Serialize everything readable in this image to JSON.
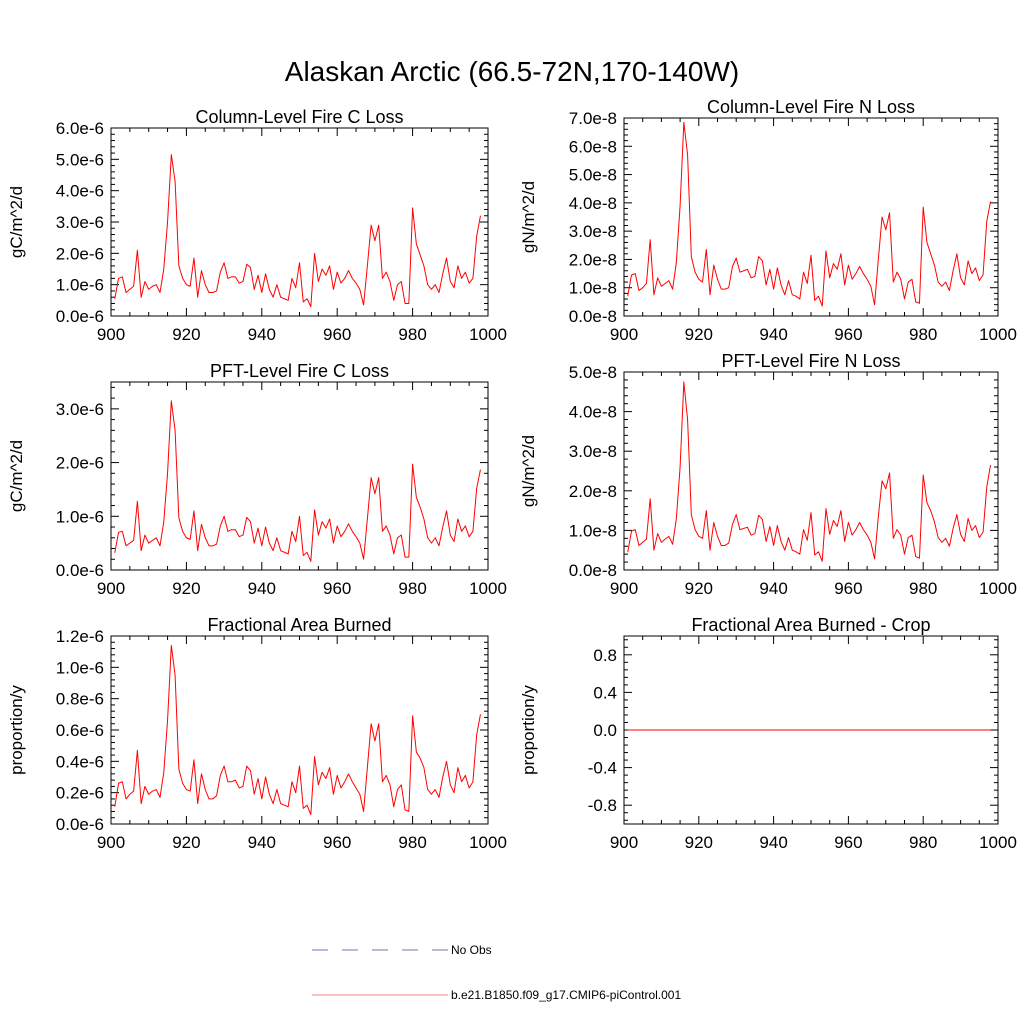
{
  "title": "Alaskan Arctic (66.5-72N,170-140W)",
  "legend": {
    "placement": "bottom-center",
    "entries": [
      {
        "label": "No Obs",
        "color": "#7070b0",
        "style": "dashed"
      },
      {
        "label": "b.e21.B1850.f09_g17.CMIP6-piControl.001",
        "color": "#ff0000",
        "style": "solid"
      }
    ]
  },
  "chart_data": [
    {
      "type": "line",
      "title": "Column-Level Fire C Loss",
      "ylabel": "gC/m^2/d",
      "xlim": [
        900,
        1000
      ],
      "ylim": [
        0,
        6e-06
      ],
      "xticks": [
        900,
        920,
        940,
        960,
        980,
        1000
      ],
      "xtick_labels": [
        "900",
        "920",
        "940",
        "960",
        "980",
        "1000"
      ],
      "yticks": [
        0,
        1e-06,
        2e-06,
        3e-06,
        4e-06,
        5e-06,
        6e-06
      ],
      "ytick_labels": [
        "0.0e-6",
        "1.0e-6",
        "2.0e-6",
        "3.0e-6",
        "4.0e-6",
        "5.0e-6",
        "6.0e-6"
      ],
      "series_color": "#ff0000",
      "x_start": 901,
      "values": [
        5.5e-07,
        1.2e-06,
        1.25e-06,
        7.5e-07,
        8.5e-07,
        9.5e-07,
        2.1e-06,
        6e-07,
        1.1e-06,
        8.5e-07,
        9.5e-07,
        1e-06,
        7.5e-07,
        1.5e-06,
        3e-06,
        5.15e-06,
        4.3e-06,
        1.6e-06,
        1.2e-06,
        1e-06,
        9.5e-07,
        1.85e-06,
        6e-07,
        1.45e-06,
        1e-06,
        7.5e-07,
        7.5e-07,
        8e-07,
        1.4e-06,
        1.7e-06,
        1.2e-06,
        1.25e-06,
        1.25e-06,
        1.05e-06,
        1.1e-06,
        1.65e-06,
        1.55e-06,
        8.5e-07,
        1.3e-06,
        7.5e-07,
        1.35e-06,
        8.5e-07,
        6e-07,
        1e-06,
        6e-07,
        5.5e-07,
        5e-07,
        1.2e-06,
        9e-07,
        1.7e-06,
        4.5e-07,
        5.5e-07,
        3e-07,
        2e-06,
        1.1e-06,
        1.5e-06,
        1.3e-06,
        1.6e-06,
        8.5e-07,
        1.4e-06,
        1.05e-06,
        1.2e-06,
        1.45e-06,
        1.2e-06,
        1.05e-06,
        8.5e-07,
        3.5e-07,
        1.6e-06,
        2.9e-06,
        2.4e-06,
        2.9e-06,
        1.2e-06,
        1.4e-06,
        1.1e-06,
        5e-07,
        1e-06,
        1.1e-06,
        4e-07,
        4e-07,
        3.45e-06,
        2.3e-06,
        1.95e-06,
        1.6e-06,
        1e-06,
        8.5e-07,
        1e-06,
        7.5e-07,
        1.35e-06,
        1.85e-06,
        1.1e-06,
        9e-07,
        1.6e-06,
        1.2e-06,
        1.4e-06,
        1.05e-06,
        1.2e-06,
        2.55e-06,
        3.2e-06
      ]
    },
    {
      "type": "line",
      "title": "Column-Level Fire N Loss",
      "ylabel": "gN/m^2/d",
      "xlim": [
        900,
        1000
      ],
      "ylim": [
        0,
        7e-08
      ],
      "xticks": [
        900,
        920,
        940,
        960,
        980,
        1000
      ],
      "xtick_labels": [
        "900",
        "920",
        "940",
        "960",
        "980",
        "1000"
      ],
      "yticks": [
        0,
        1e-08,
        2e-08,
        3e-08,
        4e-08,
        5e-08,
        6e-08,
        7e-08
      ],
      "ytick_labels": [
        "0.0e-8",
        "1.0e-8",
        "2.0e-8",
        "3.0e-8",
        "4.0e-8",
        "5.0e-8",
        "6.0e-8",
        "7.0e-8"
      ],
      "series_color": "#ff0000",
      "x_start": 901,
      "values": [
        7e-09,
        1.45e-08,
        1.5e-08,
        9e-09,
        1e-08,
        1.15e-08,
        2.7e-08,
        7.5e-09,
        1.35e-08,
        1.05e-08,
        1.15e-08,
        1.25e-08,
        9.5e-09,
        1.9e-08,
        3.9e-08,
        6.85e-08,
        5.7e-08,
        2.1e-08,
        1.55e-08,
        1.3e-08,
        1.2e-08,
        2.35e-08,
        7.5e-09,
        1.8e-08,
        1.3e-08,
        9.5e-09,
        9.5e-09,
        1e-08,
        1.75e-08,
        2.05e-08,
        1.55e-08,
        1.6e-08,
        1.65e-08,
        1.35e-08,
        1.4e-08,
        2.1e-08,
        1.95e-08,
        1.1e-08,
        1.65e-08,
        9.5e-09,
        1.7e-08,
        1.1e-08,
        7.5e-09,
        1.25e-08,
        7.5e-09,
        7e-09,
        6e-09,
        1.55e-08,
        1.15e-08,
        2.15e-08,
        5.5e-09,
        7e-09,
        3.5e-09,
        2.3e-08,
        1.35e-08,
        1.85e-08,
        1.65e-08,
        2.2e-08,
        1.1e-08,
        1.8e-08,
        1.3e-08,
        1.5e-08,
        1.75e-08,
        1.5e-08,
        1.3e-08,
        1.05e-08,
        4e-09,
        2e-08,
        3.5e-08,
        3.05e-08,
        3.65e-08,
        1.2e-08,
        1.55e-08,
        1.3e-08,
        6e-09,
        1.2e-08,
        1.3e-08,
        5e-09,
        4.5e-09,
        3.85e-08,
        2.6e-08,
        2.2e-08,
        1.8e-08,
        1.2e-08,
        1.05e-08,
        1.2e-08,
        9e-09,
        1.6e-08,
        2.2e-08,
        1.35e-08,
        1.1e-08,
        1.95e-08,
        1.5e-08,
        1.7e-08,
        1.25e-08,
        1.45e-08,
        3.35e-08,
        4.05e-08
      ]
    },
    {
      "type": "line",
      "title": "PFT-Level Fire C Loss",
      "ylabel": "gC/m^2/d",
      "xlim": [
        900,
        1000
      ],
      "ylim": [
        0,
        3.5e-06
      ],
      "xticks": [
        900,
        920,
        940,
        960,
        980,
        1000
      ],
      "xtick_labels": [
        "900",
        "920",
        "940",
        "960",
        "980",
        "1000"
      ],
      "yticks": [
        0,
        1e-06,
        2e-06,
        3e-06
      ],
      "ytick_labels": [
        "0.0e-6",
        "1.0e-6",
        "2.0e-6",
        "3.0e-6"
      ],
      "series_color": "#ff0000",
      "x_start": 901,
      "values": [
        3.2e-07,
        7e-07,
        7.2e-07,
        4.5e-07,
        5e-07,
        5.5e-07,
        1.28e-06,
        3.6e-07,
        6.5e-07,
        5e-07,
        5.5e-07,
        6e-07,
        4.5e-07,
        9e-07,
        1.8e-06,
        3.15e-06,
        2.6e-06,
        9.7e-07,
        7.2e-07,
        6e-07,
        5.7e-07,
        1.1e-06,
        3.6e-07,
        8.5e-07,
        6e-07,
        4.5e-07,
        4.5e-07,
        4.8e-07,
        8.2e-07,
        1e-06,
        7.2e-07,
        7.5e-07,
        7.5e-07,
        6.2e-07,
        6.5e-07,
        9.8e-07,
        9e-07,
        5e-07,
        7.8e-07,
        4.5e-07,
        8e-07,
        5e-07,
        3.6e-07,
        6e-07,
        3.6e-07,
        3.3e-07,
        3e-07,
        7.2e-07,
        5.3e-07,
        1e-06,
        2.7e-07,
        3.3e-07,
        1.6e-07,
        1.12e-06,
        6.5e-07,
        9e-07,
        7.8e-07,
        9.5e-07,
        5e-07,
        8.2e-07,
        6.2e-07,
        7.2e-07,
        8.6e-07,
        7.2e-07,
        6.2e-07,
        5e-07,
        2e-07,
        9.5e-07,
        1.72e-06,
        1.42e-06,
        1.72e-06,
        7.2e-07,
        8.2e-07,
        6.5e-07,
        3e-07,
        6e-07,
        6.5e-07,
        2.4e-07,
        2.4e-07,
        1.97e-06,
        1.35e-06,
        1.17e-06,
        9.5e-07,
        6e-07,
        5e-07,
        6e-07,
        4.5e-07,
        8e-07,
        1.1e-06,
        6.5e-07,
        5.3e-07,
        9.5e-07,
        7.2e-07,
        8.2e-07,
        6.2e-07,
        7.2e-07,
        1.52e-06,
        1.87e-06
      ]
    },
    {
      "type": "line",
      "title": "PFT-Level Fire N Loss",
      "ylabel": "gN/m^2/d",
      "xlim": [
        900,
        1000
      ],
      "ylim": [
        0,
        5e-08
      ],
      "xticks": [
        900,
        920,
        940,
        960,
        980,
        1000
      ],
      "xtick_labels": [
        "900",
        "920",
        "940",
        "960",
        "980",
        "1000"
      ],
      "yticks": [
        0,
        1e-08,
        2e-08,
        3e-08,
        4e-08,
        5e-08
      ],
      "ytick_labels": [
        "0.0e-8",
        "1.0e-8",
        "2.0e-8",
        "3.0e-8",
        "4.0e-8",
        "5.0e-8"
      ],
      "series_color": "#ff0000",
      "x_start": 901,
      "values": [
        4.5e-09,
        9.8e-09,
        1.02e-08,
        6.2e-09,
        7e-09,
        7.8e-09,
        1.8e-08,
        5e-09,
        9.2e-09,
        7e-09,
        7.8e-09,
        8.5e-09,
        6.5e-09,
        1.3e-08,
        2.6e-08,
        4.75e-08,
        3.8e-08,
        1.4e-08,
        1.02e-08,
        8.5e-09,
        8e-09,
        1.5e-08,
        5e-09,
        1.2e-08,
        8.5e-09,
        6.2e-09,
        6.2e-09,
        6.8e-09,
        1.15e-08,
        1.4e-08,
        1.02e-08,
        1.05e-08,
        1.08e-08,
        8.8e-09,
        9.2e-09,
        1.38e-08,
        1.28e-08,
        7.2e-09,
        1.1e-08,
        6.2e-09,
        1.12e-08,
        7.2e-09,
        5e-09,
        8.2e-09,
        5e-09,
        4.6e-09,
        4e-09,
        1.02e-08,
        7.5e-09,
        1.45e-08,
        3.8e-09,
        4.6e-09,
        2.2e-09,
        1.55e-08,
        9e-09,
        1.25e-08,
        1.1e-08,
        1.5e-08,
        7.2e-09,
        1.2e-08,
        8.8e-09,
        1.02e-08,
        1.2e-08,
        1.02e-08,
        8.8e-09,
        7e-09,
        2.8e-09,
        1.35e-08,
        2.25e-08,
        2.05e-08,
        2.45e-08,
        8e-09,
        1.02e-08,
        8.8e-09,
        4e-09,
        8.2e-09,
        8.8e-09,
        3.4e-09,
        3e-09,
        2.4e-08,
        1.7e-08,
        1.5e-08,
        1.22e-08,
        8.2e-09,
        7e-09,
        8e-09,
        6e-09,
        1.05e-08,
        1.4e-08,
        9e-09,
        7.2e-09,
        1.3e-08,
        1e-08,
        1.12e-08,
        8.2e-09,
        9.5e-09,
        2.1e-08,
        2.65e-08
      ]
    },
    {
      "type": "line",
      "title": "Fractional Area Burned",
      "ylabel": "proportion/y",
      "xlim": [
        900,
        1000
      ],
      "ylim": [
        0,
        1.2e-06
      ],
      "xticks": [
        900,
        920,
        940,
        960,
        980,
        1000
      ],
      "xtick_labels": [
        "900",
        "920",
        "940",
        "960",
        "980",
        "1000"
      ],
      "yticks": [
        0,
        2e-07,
        4e-07,
        6e-07,
        8e-07,
        1e-06,
        1.2e-06
      ],
      "ytick_labels": [
        "0.0e-6",
        "0.2e-6",
        "0.4e-6",
        "0.6e-6",
        "0.8e-6",
        "1.0e-6",
        "1.2e-6"
      ],
      "series_color": "#ff0000",
      "x_start": 901,
      "values": [
        1.1e-07,
        2.6e-07,
        2.7e-07,
        1.6e-07,
        1.9e-07,
        2.1e-07,
        4.7e-07,
        1.3e-07,
        2.4e-07,
        1.9e-07,
        2.1e-07,
        2.2e-07,
        1.7e-07,
        3.3e-07,
        6.6e-07,
        1.14e-06,
        9.5e-07,
        3.5e-07,
        2.6e-07,
        2.2e-07,
        2.1e-07,
        4.1e-07,
        1.3e-07,
        3.2e-07,
        2.2e-07,
        1.6e-07,
        1.6e-07,
        1.8e-07,
        3.1e-07,
        3.7e-07,
        2.7e-07,
        2.7e-07,
        2.8e-07,
        2.3e-07,
        2.4e-07,
        3.7e-07,
        3.4e-07,
        1.9e-07,
        2.9e-07,
        1.6e-07,
        3e-07,
        1.9e-07,
        1.3e-07,
        2.2e-07,
        1.3e-07,
        1.2e-07,
        1.1e-07,
        2.7e-07,
        2e-07,
        3.7e-07,
        1e-07,
        1.2e-07,
        6e-08,
        4.3e-07,
        2.5e-07,
        3.3e-07,
        2.9e-07,
        3.6e-07,
        1.9e-07,
        3.1e-07,
        2.3e-07,
        2.7e-07,
        3.2e-07,
        2.7e-07,
        2.3e-07,
        1.9e-07,
        8e-08,
        3.6e-07,
        6.4e-07,
        5.3e-07,
        6.4e-07,
        2.7e-07,
        3.1e-07,
        2.5e-07,
        1.1e-07,
        2.2e-07,
        2.5e-07,
        9e-08,
        8e-08,
        6.9e-07,
        4.6e-07,
        4.2e-07,
        3.6e-07,
        2.2e-07,
        1.9e-07,
        2.2e-07,
        1.7e-07,
        3e-07,
        4e-07,
        2.5e-07,
        2e-07,
        3.6e-07,
        2.7e-07,
        3.1e-07,
        2.3e-07,
        2.7e-07,
        5.7e-07,
        7e-07
      ]
    },
    {
      "type": "line",
      "title": "Fractional Area Burned - Crop",
      "ylabel": "proportion/y",
      "xlim": [
        900,
        1000
      ],
      "ylim": [
        -1.0,
        1.0
      ],
      "xticks": [
        900,
        920,
        940,
        960,
        980,
        1000
      ],
      "xtick_labels": [
        "900",
        "920",
        "940",
        "960",
        "980",
        "1000"
      ],
      "yticks": [
        -0.8,
        -0.4,
        0.0,
        0.4,
        0.8
      ],
      "ytick_labels": [
        "-0.8",
        "-0.4",
        "0.0",
        "0.4",
        "0.8"
      ],
      "series_color": "#ff0000",
      "x_start": 901,
      "constant_value": 0.0,
      "x_end": 998
    }
  ]
}
